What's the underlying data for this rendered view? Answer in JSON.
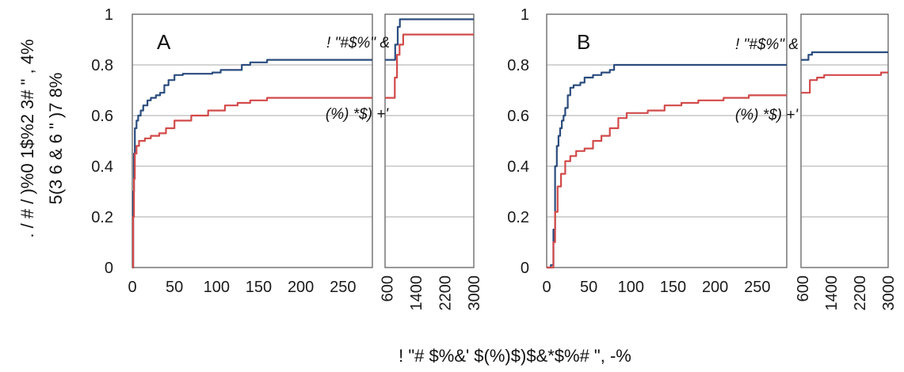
{
  "chart_data": [
    {
      "type": "line",
      "panel_label": "A",
      "x_ticks": [
        "0",
        "50",
        "100",
        "150",
        "200",
        "250"
      ],
      "xlim": [
        0,
        285
      ],
      "x_break_ticks": [
        "600",
        "1400",
        "2200",
        "3000"
      ],
      "x_break_lim": [
        550,
        3000
      ],
      "y_ticks": [
        "0",
        "0.2",
        "0.4",
        "0.6",
        "0.8",
        "1"
      ],
      "ylim": [
        0,
        1
      ],
      "grid": true,
      "series": [
        {
          "name": "! \"#$%\" &",
          "color": "#2b4c7e",
          "points": [
            [
              0,
              0
            ],
            [
              1,
              0.3
            ],
            [
              2,
              0.45
            ],
            [
              3,
              0.55
            ],
            [
              5,
              0.58
            ],
            [
              7,
              0.6
            ],
            [
              10,
              0.62
            ],
            [
              13,
              0.64
            ],
            [
              18,
              0.66
            ],
            [
              22,
              0.67
            ],
            [
              28,
              0.68
            ],
            [
              33,
              0.69
            ],
            [
              38,
              0.72
            ],
            [
              43,
              0.74
            ],
            [
              50,
              0.76
            ],
            [
              60,
              0.765
            ],
            [
              95,
              0.77
            ],
            [
              105,
              0.78
            ],
            [
              130,
              0.8
            ],
            [
              140,
              0.81
            ],
            [
              160,
              0.82
            ],
            [
              285,
              0.82
            ]
          ],
          "break_points": [
            [
              550,
              0.82
            ],
            [
              760,
              0.82
            ],
            [
              830,
              0.88
            ],
            [
              900,
              0.95
            ],
            [
              960,
              0.98
            ],
            [
              3000,
              0.98
            ]
          ]
        },
        {
          "name": "(%) *$) +'",
          "color": "#d24a4a",
          "points": [
            [
              0,
              0
            ],
            [
              1,
              0.2
            ],
            [
              2,
              0.35
            ],
            [
              3,
              0.45
            ],
            [
              5,
              0.48
            ],
            [
              8,
              0.5
            ],
            [
              15,
              0.51
            ],
            [
              22,
              0.52
            ],
            [
              32,
              0.53
            ],
            [
              40,
              0.55
            ],
            [
              50,
              0.58
            ],
            [
              70,
              0.6
            ],
            [
              90,
              0.62
            ],
            [
              110,
              0.64
            ],
            [
              125,
              0.65
            ],
            [
              140,
              0.66
            ],
            [
              160,
              0.67
            ],
            [
              285,
              0.67
            ]
          ],
          "break_points": [
            [
              550,
              0.67
            ],
            [
              760,
              0.67
            ],
            [
              820,
              0.75
            ],
            [
              880,
              0.84
            ],
            [
              950,
              0.88
            ],
            [
              1050,
              0.92
            ],
            [
              3000,
              0.92
            ]
          ]
        }
      ]
    },
    {
      "type": "line",
      "panel_label": "B",
      "x_ticks": [
        "0",
        "50",
        "100",
        "150",
        "200",
        "250"
      ],
      "xlim": [
        0,
        285
      ],
      "x_break_ticks": [
        "600",
        "1400",
        "2200",
        "3000"
      ],
      "x_break_lim": [
        550,
        3000
      ],
      "y_ticks": [
        "0",
        "0.2",
        "0.4",
        "0.6",
        "0.8",
        "1"
      ],
      "ylim": [
        0,
        1
      ],
      "grid": true,
      "series": [
        {
          "name": "! \"#$%\" &",
          "color": "#2b4c7e",
          "points": [
            [
              0,
              0
            ],
            [
              5,
              0.01
            ],
            [
              8,
              0.15
            ],
            [
              10,
              0.4
            ],
            [
              12,
              0.48
            ],
            [
              14,
              0.52
            ],
            [
              16,
              0.55
            ],
            [
              18,
              0.58
            ],
            [
              20,
              0.6
            ],
            [
              22,
              0.63
            ],
            [
              25,
              0.68
            ],
            [
              28,
              0.71
            ],
            [
              32,
              0.72
            ],
            [
              40,
              0.73
            ],
            [
              45,
              0.75
            ],
            [
              55,
              0.76
            ],
            [
              65,
              0.77
            ],
            [
              75,
              0.78
            ],
            [
              80,
              0.8
            ],
            [
              285,
              0.8
            ]
          ],
          "break_points": [
            [
              550,
              0.82
            ],
            [
              700,
              0.82
            ],
            [
              760,
              0.84
            ],
            [
              860,
              0.85
            ],
            [
              3000,
              0.85
            ]
          ]
        },
        {
          "name": "(%) *$) +'",
          "color": "#d24a4a",
          "points": [
            [
              0,
              0
            ],
            [
              5,
              0.0
            ],
            [
              8,
              0.1
            ],
            [
              10,
              0.22
            ],
            [
              13,
              0.32
            ],
            [
              17,
              0.37
            ],
            [
              22,
              0.42
            ],
            [
              28,
              0.44
            ],
            [
              35,
              0.46
            ],
            [
              45,
              0.47
            ],
            [
              55,
              0.5
            ],
            [
              65,
              0.52
            ],
            [
              75,
              0.55
            ],
            [
              85,
              0.59
            ],
            [
              95,
              0.61
            ],
            [
              120,
              0.62
            ],
            [
              140,
              0.64
            ],
            [
              160,
              0.65
            ],
            [
              180,
              0.66
            ],
            [
              210,
              0.67
            ],
            [
              240,
              0.68
            ],
            [
              285,
              0.68
            ]
          ],
          "break_points": [
            [
              550,
              0.69
            ],
            [
              700,
              0.69
            ],
            [
              800,
              0.74
            ],
            [
              1000,
              0.75
            ],
            [
              1200,
              0.76
            ],
            [
              2700,
              0.76
            ],
            [
              2800,
              0.77
            ],
            [
              3000,
              0.77
            ]
          ]
        }
      ]
    }
  ],
  "y_axis_title_line1": ". / # / )%0 1$%2 3# \" , 4%",
  "y_axis_title_line2": "5(3 6 & 6 \" )7 8%",
  "x_axis_title": "! \"# $%&' $(%)$)$&*$%# \", -%"
}
